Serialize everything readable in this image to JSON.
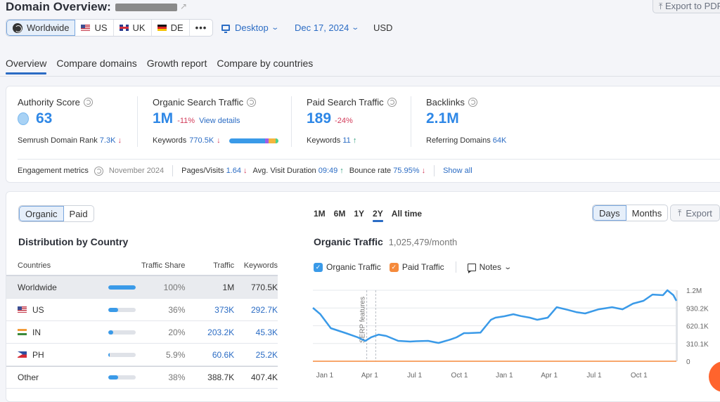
{
  "header": {
    "title": "Domain Overview:",
    "export_pdf_label": "Export to PDF",
    "databases": [
      {
        "label": "Worldwide",
        "icon": "globe-icon",
        "active": true
      },
      {
        "label": "US",
        "icon": "flag-us-icon",
        "active": false
      },
      {
        "label": "UK",
        "icon": "flag-uk-icon",
        "active": false
      },
      {
        "label": "DE",
        "icon": "flag-de-icon",
        "active": false
      }
    ],
    "more_label": "•••",
    "device": "Desktop",
    "date": "Dec 17, 2024",
    "currency": "USD"
  },
  "tabs": [
    {
      "label": "Overview",
      "active": true
    },
    {
      "label": "Compare domains",
      "active": false
    },
    {
      "label": "Growth report",
      "active": false
    },
    {
      "label": "Compare by countries",
      "active": false
    }
  ],
  "summary": {
    "authority": {
      "label": "Authority Score",
      "value": "63",
      "sub_label": "Semrush Domain Rank",
      "sub_value": "7.3K",
      "sub_trend": "down"
    },
    "organic": {
      "label": "Organic Search Traffic",
      "value": "1M",
      "delta": "-11%",
      "link": "View details",
      "sub_label": "Keywords",
      "sub_value": "770.5K",
      "sub_trend": "down",
      "keyword_bar": [
        {
          "color": "#3a9ae8",
          "share": 0.73
        },
        {
          "color": "#a05ee6",
          "share": 0.07
        },
        {
          "color": "#f4b63d",
          "share": 0.15
        },
        {
          "color": "#4fd18a",
          "share": 0.05
        }
      ]
    },
    "paid": {
      "label": "Paid Search Traffic",
      "value": "189",
      "delta": "-24%",
      "sub_label": "Keywords",
      "sub_value": "11",
      "sub_trend": "up"
    },
    "backlinks": {
      "label": "Backlinks",
      "value": "2.1M",
      "sub_label": "Referring Domains",
      "sub_value": "64K"
    },
    "engagement": {
      "label": "Engagement metrics",
      "period": "November 2024",
      "pages_label": "Pages/Visits",
      "pages_value": "1.64",
      "pages_trend": "down",
      "duration_label": "Avg. Visit Duration",
      "duration_value": "09:49",
      "duration_trend": "up",
      "bounce_label": "Bounce rate",
      "bounce_value": "75.95%",
      "bounce_trend": "down",
      "show_all": "Show all"
    }
  },
  "distribution": {
    "toggle": [
      {
        "label": "Organic",
        "active": true
      },
      {
        "label": "Paid",
        "active": false
      }
    ],
    "title": "Distribution by Country",
    "columns": [
      "Countries",
      "Traffic Share",
      "Traffic",
      "Keywords"
    ],
    "rows": [
      {
        "country": "Worldwide",
        "flag": "",
        "share": "100%",
        "share_value": 1.0,
        "traffic": "1M",
        "keywords": "770.5K",
        "kind": "ww"
      },
      {
        "country": "US",
        "flag": "flag-us",
        "share": "36%",
        "share_value": 0.36,
        "traffic": "373K",
        "keywords": "292.7K",
        "kind": "country"
      },
      {
        "country": "IN",
        "flag": "flag-in",
        "share": "20%",
        "share_value": 0.2,
        "traffic": "203.2K",
        "keywords": "45.3K",
        "kind": "country"
      },
      {
        "country": "PH",
        "flag": "flag-ph",
        "share": "5.9%",
        "share_value": 0.059,
        "traffic": "60.6K",
        "keywords": "25.2K",
        "kind": "country"
      },
      {
        "country": "Other",
        "flag": "",
        "share": "38%",
        "share_value": 0.38,
        "traffic": "388.7K",
        "keywords": "407.4K",
        "kind": "other"
      }
    ]
  },
  "traffic_panel": {
    "periods": [
      {
        "label": "1M",
        "active": false
      },
      {
        "label": "6M",
        "active": false
      },
      {
        "label": "1Y",
        "active": false
      },
      {
        "label": "2Y",
        "active": true
      },
      {
        "label": "All time",
        "active": false
      }
    ],
    "granularity": [
      {
        "label": "Days",
        "active": true
      },
      {
        "label": "Months",
        "active": false
      }
    ],
    "export_label": "Export",
    "title": "Organic Traffic",
    "summary_value": "1,025,479/month",
    "legend": [
      {
        "label": "Organic Traffic",
        "color": "#3a9ae8",
        "checked": true
      },
      {
        "label": "Paid Traffic",
        "color": "#f58a3c",
        "checked": true
      }
    ],
    "notes_label": "Notes"
  },
  "chart_data": {
    "type": "line",
    "title": "Organic Traffic",
    "xlabel": "",
    "ylabel": "",
    "x_tick_labels": [
      "Jan 1",
      "Apr 1",
      "Jul 1",
      "Oct 1",
      "Jan 1",
      "Apr 1",
      "Jul 1",
      "Oct 1"
    ],
    "y_tick_labels": [
      "1.2M",
      "930.2K",
      "620.1K",
      "310.1K",
      "0"
    ],
    "y_ticks": [
      1240400,
      930300,
      620200,
      310100,
      0
    ],
    "ylim": [
      0,
      1240400
    ],
    "x_range_months": [
      -0.8,
      23.5
    ],
    "grid": true,
    "annotations": [
      {
        "label": "SERP features",
        "x_month": 2.8
      },
      {
        "x_month": 3.4
      }
    ],
    "series": [
      {
        "name": "Organic Traffic",
        "color": "#3a9ae8",
        "x_month": [
          -0.8,
          -0.3,
          0.4,
          1.4,
          2.2,
          2.7,
          3.1,
          3.6,
          4.1,
          4.9,
          5.7,
          6.1,
          6.9,
          7.6,
          8.4,
          8.8,
          9.3,
          9.6,
          10.4,
          11.1,
          11.4,
          12.0,
          12.6,
          13.1,
          13.7,
          14.2,
          14.9,
          15.5,
          16.2,
          16.8,
          17.4,
          18.3,
          19.2,
          19.9,
          20.6,
          21.3,
          21.9,
          22.6,
          22.9,
          23.3,
          23.5
        ],
        "values": [
          933000,
          822000,
          577000,
          491000,
          417000,
          355000,
          420000,
          466000,
          442000,
          356000,
          344000,
          350000,
          356000,
          319000,
          380000,
          417000,
          491000,
          491000,
          500000,
          724000,
          761000,
          786000,
          822000,
          790000,
          761000,
          724000,
          761000,
          945000,
          900000,
          859000,
          835000,
          908000,
          945000,
          908000,
          1007000,
          1056000,
          1166000,
          1154000,
          1240000,
          1154000,
          1056000
        ]
      },
      {
        "name": "Paid Traffic",
        "color": "#f58a3c",
        "x_month": [
          -0.8,
          23.5
        ],
        "values": [
          189,
          189
        ]
      }
    ]
  }
}
